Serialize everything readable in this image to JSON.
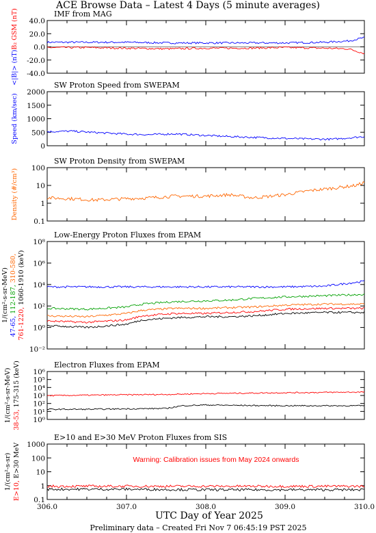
{
  "title": "ACE Browse Data – Latest 4 Days (5 minute averages)",
  "xlabel": "UTC Day of Year 2025",
  "footer": "Preliminary data – Created Fri Nov  7 06:45:19 PST 2025",
  "x_ticks": [
    "306.0",
    "307.0",
    "308.0",
    "309.0",
    "310.0"
  ],
  "colors": {
    "blue": "#0000ff",
    "red": "#ff0000",
    "green": "#00a000",
    "orange": "#ff6600",
    "black": "#000000"
  },
  "chart_data": [
    {
      "type": "line",
      "title": "IMF from MAG",
      "ylabel_parts": [
        {
          "text": "<|B|> (nT)",
          "color": "#0000ff"
        },
        {
          "text": "B₂ GSM (nT)",
          "color": "#ff0000"
        }
      ],
      "ylim": [
        -40,
        40
      ],
      "yscale": "linear",
      "yticks": [
        "-40.0",
        "-20.0",
        "0.0",
        "20.0",
        "40.0"
      ],
      "x": [
        306.0,
        306.5,
        307.0,
        307.5,
        308.0,
        308.5,
        309.0,
        309.5,
        309.8,
        310.0
      ],
      "series": [
        {
          "color": "#0000ff",
          "values": [
            7,
            7,
            7,
            6,
            6,
            6,
            6,
            7,
            9,
            14
          ]
        },
        {
          "color": "#ff0000",
          "values": [
            -1,
            -1,
            -2,
            -3,
            -2,
            -2,
            -1,
            -2,
            -3,
            -10
          ]
        }
      ]
    },
    {
      "type": "line",
      "title": "SW Proton Speed from SWEPAM",
      "ylabel_parts": [
        {
          "text": "Speed (km/sec)",
          "color": "#0000ff"
        }
      ],
      "ylim": [
        0,
        2000
      ],
      "yscale": "linear",
      "yticks": [
        "0",
        "500",
        "1000",
        "1500",
        "2000"
      ],
      "x": [
        306.0,
        306.3,
        306.6,
        307.0,
        307.3,
        307.6,
        308.0,
        308.3,
        308.6,
        309.0,
        309.3,
        309.6,
        310.0
      ],
      "series": [
        {
          "color": "#0000ff",
          "values": [
            520,
            540,
            490,
            430,
            410,
            440,
            380,
            340,
            310,
            270,
            250,
            240,
            340
          ]
        }
      ]
    },
    {
      "type": "line",
      "title": "SW Proton Density from SWEPAM",
      "ylabel_parts": [
        {
          "text": "Density (#/cm³)",
          "color": "#ff6600"
        }
      ],
      "ylim": [
        0.1,
        100
      ],
      "yscale": "log",
      "yticks": [
        "0.1",
        "1",
        "10",
        "100"
      ],
      "x": [
        306.0,
        306.3,
        306.6,
        307.0,
        307.3,
        307.6,
        308.0,
        308.3,
        308.6,
        309.0,
        309.3,
        309.6,
        309.9,
        310.0
      ],
      "series": [
        {
          "color": "#ff6600",
          "values": [
            2,
            1.8,
            1.5,
            1.8,
            2,
            2.5,
            2.5,
            3,
            2,
            3,
            5,
            7,
            10,
            15
          ]
        }
      ]
    },
    {
      "type": "line",
      "title": "Low-Energy Proton Fluxes from EPAM",
      "ylabel_parts": [
        {
          "text": "1/(cm²-s-sr-MeV)",
          "color": "#000000"
        }
      ],
      "ylabel2_parts": [
        {
          "text": "47-65, ",
          "color": "#0000ff"
        },
        {
          "text": "112-187, ",
          "color": "#00a000"
        },
        {
          "text": "310-580, ",
          "color": "#ff6600"
        }
      ],
      "ylabel3_parts": [
        {
          "text": "761-1220, ",
          "color": "#ff0000"
        },
        {
          "text": "1060-1910 (keV)",
          "color": "#000000"
        }
      ],
      "ylim": [
        0.01,
        100000000
      ],
      "yscale": "log",
      "yticks": [
        "10⁻²",
        "10⁰",
        "10²",
        "10⁴",
        "10⁶",
        "10⁸"
      ],
      "x": [
        306.0,
        306.5,
        307.0,
        307.2,
        307.6,
        308.0,
        308.3,
        308.6,
        309.0,
        309.5,
        310.0
      ],
      "series": [
        {
          "color": "#0000ff",
          "values": [
            6000,
            6000,
            6000,
            6000,
            6000,
            6000,
            6000,
            6000,
            6000,
            7000,
            20000
          ]
        },
        {
          "color": "#00a000",
          "values": [
            60,
            50,
            80,
            150,
            250,
            300,
            350,
            500,
            700,
            900,
            1200
          ]
        },
        {
          "color": "#ff6600",
          "values": [
            12,
            10,
            20,
            40,
            60,
            60,
            70,
            80,
            120,
            150,
            150
          ]
        },
        {
          "color": "#ff0000",
          "values": [
            4,
            3,
            5,
            12,
            20,
            20,
            25,
            30,
            50,
            60,
            60
          ]
        },
        {
          "color": "#000000",
          "values": [
            1.5,
            1,
            2,
            5,
            8,
            10,
            10,
            12,
            20,
            25,
            25
          ]
        }
      ]
    },
    {
      "type": "line",
      "title": "Electron Fluxes from EPAM",
      "ylabel_parts": [
        {
          "text": "1/(cm²-s-sr-MeV)",
          "color": "#000000"
        }
      ],
      "ylabel2_parts": [
        {
          "text": "38-53, ",
          "color": "#ff0000"
        },
        {
          "text": "175-315 (keV)",
          "color": "#000000"
        }
      ],
      "ylim": [
        1,
        10000000
      ],
      "yscale": "log",
      "yticks": [
        "10⁰",
        "10¹",
        "10²",
        "10³",
        "10⁴",
        "10⁵",
        "10⁶"
      ],
      "x": [
        306.0,
        306.5,
        307.0,
        307.5,
        307.7,
        308.0,
        308.5,
        309.0,
        309.5,
        310.0
      ],
      "series": [
        {
          "color": "#ff0000",
          "values": [
            3000,
            3500,
            4000,
            4500,
            5000,
            6000,
            7000,
            8000,
            9000,
            10000
          ]
        },
        {
          "color": "#000000",
          "values": [
            30,
            30,
            35,
            40,
            100,
            130,
            110,
            100,
            100,
            100
          ]
        }
      ]
    },
    {
      "type": "line",
      "title": "E>10 and E>30 MeV Proton Fluxes from SIS",
      "annotation": "Warning: Calibration issues from May 2024 onwards",
      "ylabel_parts": [
        {
          "text": "1/(cm²-s-sr)",
          "color": "#000000"
        }
      ],
      "ylabel2_parts": [
        {
          "text": "E>10, ",
          "color": "#ff0000"
        },
        {
          "text": "E>30 MeV",
          "color": "#000000"
        }
      ],
      "ylim": [
        0.1,
        1000
      ],
      "yscale": "log",
      "yticks": [
        "0.1",
        "1",
        "10",
        "100",
        "1000"
      ],
      "x": [
        306.0,
        307.0,
        308.0,
        309.0,
        310.0
      ],
      "series": [
        {
          "color": "#ff0000",
          "values": [
            0.9,
            0.9,
            0.9,
            0.9,
            0.9
          ]
        },
        {
          "color": "#000000",
          "values": [
            0.55,
            0.55,
            0.5,
            0.5,
            0.5
          ]
        }
      ]
    }
  ]
}
